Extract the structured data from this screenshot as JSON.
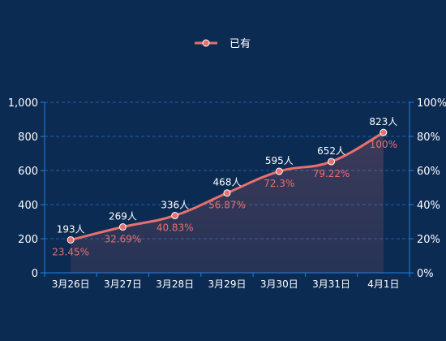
{
  "chart_data": {
    "type": "line",
    "legend": {
      "label": "已有",
      "position": "top-center"
    },
    "categories": [
      "3月26日",
      "3月27日",
      "3月28日",
      "3月29日",
      "3月30日",
      "3月31日",
      "4月1日"
    ],
    "series": [
      {
        "name": "已有",
        "values": [
          193,
          269,
          336,
          468,
          595,
          652,
          823
        ],
        "value_labels": [
          "193人",
          "269人",
          "336人",
          "468人",
          "595人",
          "652人",
          "823人"
        ],
        "percent_labels": [
          "23.45%",
          "32.69%",
          "40.83%",
          "56.87%",
          "72.3%",
          "79.22%",
          "100%"
        ],
        "smooth": true,
        "area_fill": true
      }
    ],
    "y_left": {
      "ticks": [
        "0",
        "200",
        "400",
        "600",
        "800",
        "1,000"
      ],
      "ylim": [
        0,
        1000
      ]
    },
    "y_right": {
      "ticks": [
        "0%",
        "20%",
        "40%",
        "60%",
        "80%",
        "100%"
      ],
      "ylim": [
        0,
        100
      ]
    },
    "grid": "horizontal dashed",
    "colors": {
      "background": "#0c2b53",
      "line": "#e8706e",
      "axis": "#1e7fe0",
      "grid": "#1f5fa8",
      "text": "#ffffff",
      "percent_label": "#e8706e"
    }
  }
}
